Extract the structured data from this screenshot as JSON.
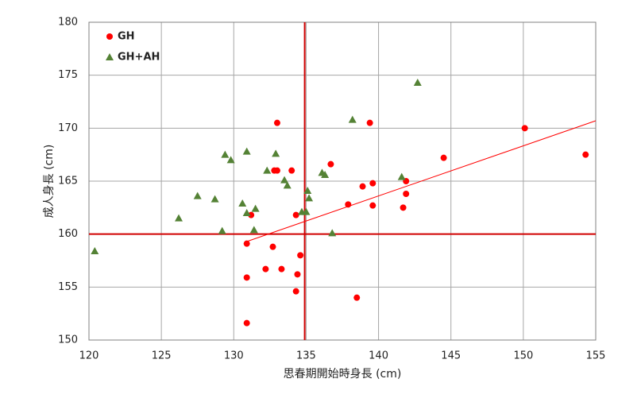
{
  "chart_data": {
    "type": "scatter",
    "x_label": "思春期開始時身長 (cm)",
    "y_label": "成人身長 (cm)",
    "xlim": [
      120,
      155
    ],
    "xticks": [
      120,
      125,
      130,
      135,
      140,
      145,
      150,
      155
    ],
    "ylim": [
      150,
      180
    ],
    "yticks": [
      150,
      155,
      160,
      165,
      170,
      175,
      180
    ],
    "grid": true,
    "legend": "upper-left",
    "series": [
      {
        "name": "GH",
        "color": "#ff0000",
        "marker": "circle",
        "x": [
          130.9,
          130.9,
          130.9,
          131.2,
          132.2,
          132.7,
          132.8,
          133.0,
          133.0,
          133.3,
          134.0,
          134.3,
          134.3,
          134.4,
          134.6,
          136.7,
          137.9,
          138.5,
          138.9,
          139.4,
          139.6,
          139.6,
          141.7,
          141.9,
          141.9,
          144.5,
          150.1,
          154.3
        ],
        "values": [
          159.1,
          155.9,
          151.6,
          161.8,
          156.7,
          158.8,
          166.0,
          166.0,
          170.5,
          156.7,
          166.0,
          161.8,
          154.6,
          156.2,
          158.0,
          166.6,
          162.8,
          154.0,
          164.5,
          170.5,
          164.8,
          162.7,
          162.5,
          165.0,
          163.8,
          167.2,
          170.0,
          167.5
        ]
      },
      {
        "name": "GH+AH",
        "color": "#548235",
        "marker": "triangle",
        "x": [
          120.4,
          126.2,
          127.5,
          128.7,
          129.2,
          129.4,
          129.8,
          130.6,
          130.9,
          130.9,
          131.4,
          131.5,
          132.3,
          132.9,
          133.5,
          133.7,
          134.7,
          135.0,
          135.1,
          135.2,
          136.1,
          136.3,
          136.8,
          138.2,
          141.6,
          142.7
        ],
        "values": [
          158.4,
          161.5,
          163.6,
          163.3,
          160.3,
          167.5,
          167.0,
          162.9,
          167.8,
          162.0,
          160.4,
          162.4,
          166.0,
          167.6,
          165.1,
          164.6,
          162.1,
          162.1,
          164.1,
          163.4,
          165.8,
          165.6,
          160.1,
          170.8,
          165.4,
          174.3
        ]
      }
    ],
    "reference_lines": {
      "x": 134.9,
      "y": 160.0,
      "color": "#d00000"
    },
    "trendline": {
      "x": [
        130.9,
        155
      ],
      "values": [
        159.3,
        170.7
      ],
      "color": "#ff0000"
    }
  }
}
